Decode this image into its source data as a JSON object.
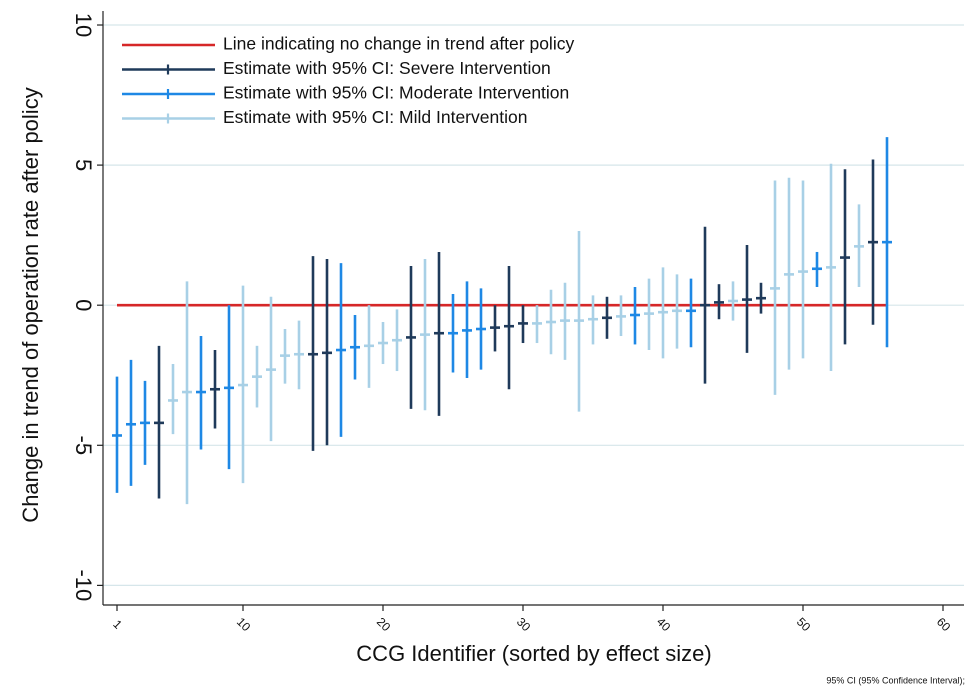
{
  "chart_data": {
    "type": "errorbar",
    "x_label": "CCG Identifier (sorted by effect size)",
    "y_label": "Change in trend of operation rate after policy",
    "footnote": "95% CI (95% Confidence Interval);",
    "xlim": [
      0,
      61.5
    ],
    "ylim": [
      -10.7,
      10.5
    ],
    "xticks": [
      1,
      10,
      20,
      30,
      40,
      50,
      60
    ],
    "yticks": [
      -10,
      -5,
      0,
      5,
      10
    ],
    "grid": true,
    "legend": "top-left",
    "reference_line": {
      "name": "Line indicating no change in trend after policy",
      "color": "#d62728",
      "value": 0,
      "x": [
        1,
        56
      ]
    },
    "series": [
      {
        "name": "Estimate with 95% CI: Severe Intervention",
        "color": "#1f3a5a",
        "x": [
          4,
          8,
          15,
          16,
          22,
          24,
          28,
          29,
          30,
          36,
          43,
          44,
          46,
          47,
          53,
          55
        ],
        "values": [
          -4.2,
          -3.0,
          -1.75,
          -1.7,
          -1.15,
          -1.0,
          -0.8,
          -0.75,
          -0.65,
          -0.45,
          0,
          0.1,
          0.2,
          0.25,
          1.7,
          2.25
        ],
        "lower": [
          -6.9,
          -4.4,
          -5.2,
          -5.0,
          -3.7,
          -3.95,
          -1.65,
          -3.0,
          -1.35,
          -1.2,
          -2.8,
          -0.5,
          -1.7,
          -0.3,
          -1.4,
          -0.7
        ],
        "upper": [
          -1.45,
          -1.6,
          1.75,
          1.65,
          1.4,
          1.9,
          0,
          1.4,
          0,
          0.3,
          2.8,
          0.75,
          2.15,
          0.8,
          4.85,
          5.2
        ]
      },
      {
        "name": "Estimate with 95% CI: Moderate Intervention",
        "color": "#1e88e5",
        "x": [
          1,
          2,
          3,
          7,
          9,
          17,
          18,
          25,
          26,
          27,
          38,
          42,
          51,
          56
        ],
        "values": [
          -4.65,
          -4.25,
          -4.2,
          -3.1,
          -2.95,
          -1.6,
          -1.5,
          -1.0,
          -0.9,
          -0.85,
          -0.35,
          -0.2,
          1.3,
          2.25
        ],
        "lower": [
          -6.7,
          -6.45,
          -5.7,
          -5.15,
          -5.85,
          -4.7,
          -2.65,
          -2.4,
          -2.6,
          -2.3,
          -1.4,
          -1.5,
          0.65,
          -1.5
        ],
        "upper": [
          -2.55,
          -1.95,
          -2.7,
          -1.1,
          0,
          1.5,
          -0.35,
          0.4,
          0.85,
          0.6,
          0.65,
          0.95,
          1.9,
          6.0
        ]
      },
      {
        "name": "Estimate with 95% CI: Mild Intervention",
        "color": "#a8d0e6",
        "x": [
          5,
          6,
          10,
          11,
          12,
          13,
          14,
          19,
          20,
          21,
          23,
          31,
          32,
          33,
          34,
          35,
          37,
          39,
          40,
          41,
          45,
          48,
          49,
          50,
          52,
          54
        ],
        "values": [
          -3.4,
          -3.1,
          -2.85,
          -2.55,
          -2.3,
          -1.8,
          -1.75,
          -1.45,
          -1.35,
          -1.25,
          -1.05,
          -0.65,
          -0.6,
          -0.55,
          -0.55,
          -0.5,
          -0.4,
          -0.3,
          -0.25,
          -0.2,
          0.15,
          0.6,
          1.1,
          1.2,
          1.35,
          2.1
        ],
        "lower": [
          -4.6,
          -7.1,
          -6.35,
          -3.65,
          -4.85,
          -2.8,
          -3.0,
          -2.95,
          -2.1,
          -2.35,
          -3.75,
          -1.35,
          -1.75,
          -1.95,
          -3.8,
          -1.4,
          -1.1,
          -1.6,
          -1.9,
          -1.55,
          -0.55,
          -3.2,
          -2.3,
          -1.9,
          -2.35,
          0.65
        ],
        "upper": [
          -2.1,
          0.85,
          0.7,
          -1.45,
          0.3,
          -0.85,
          -0.55,
          0,
          -0.6,
          -0.15,
          1.65,
          0,
          0.55,
          0.8,
          2.65,
          0.35,
          0.35,
          0.95,
          1.35,
          1.1,
          0.85,
          4.45,
          4.55,
          4.45,
          5.05,
          3.6
        ]
      }
    ]
  }
}
